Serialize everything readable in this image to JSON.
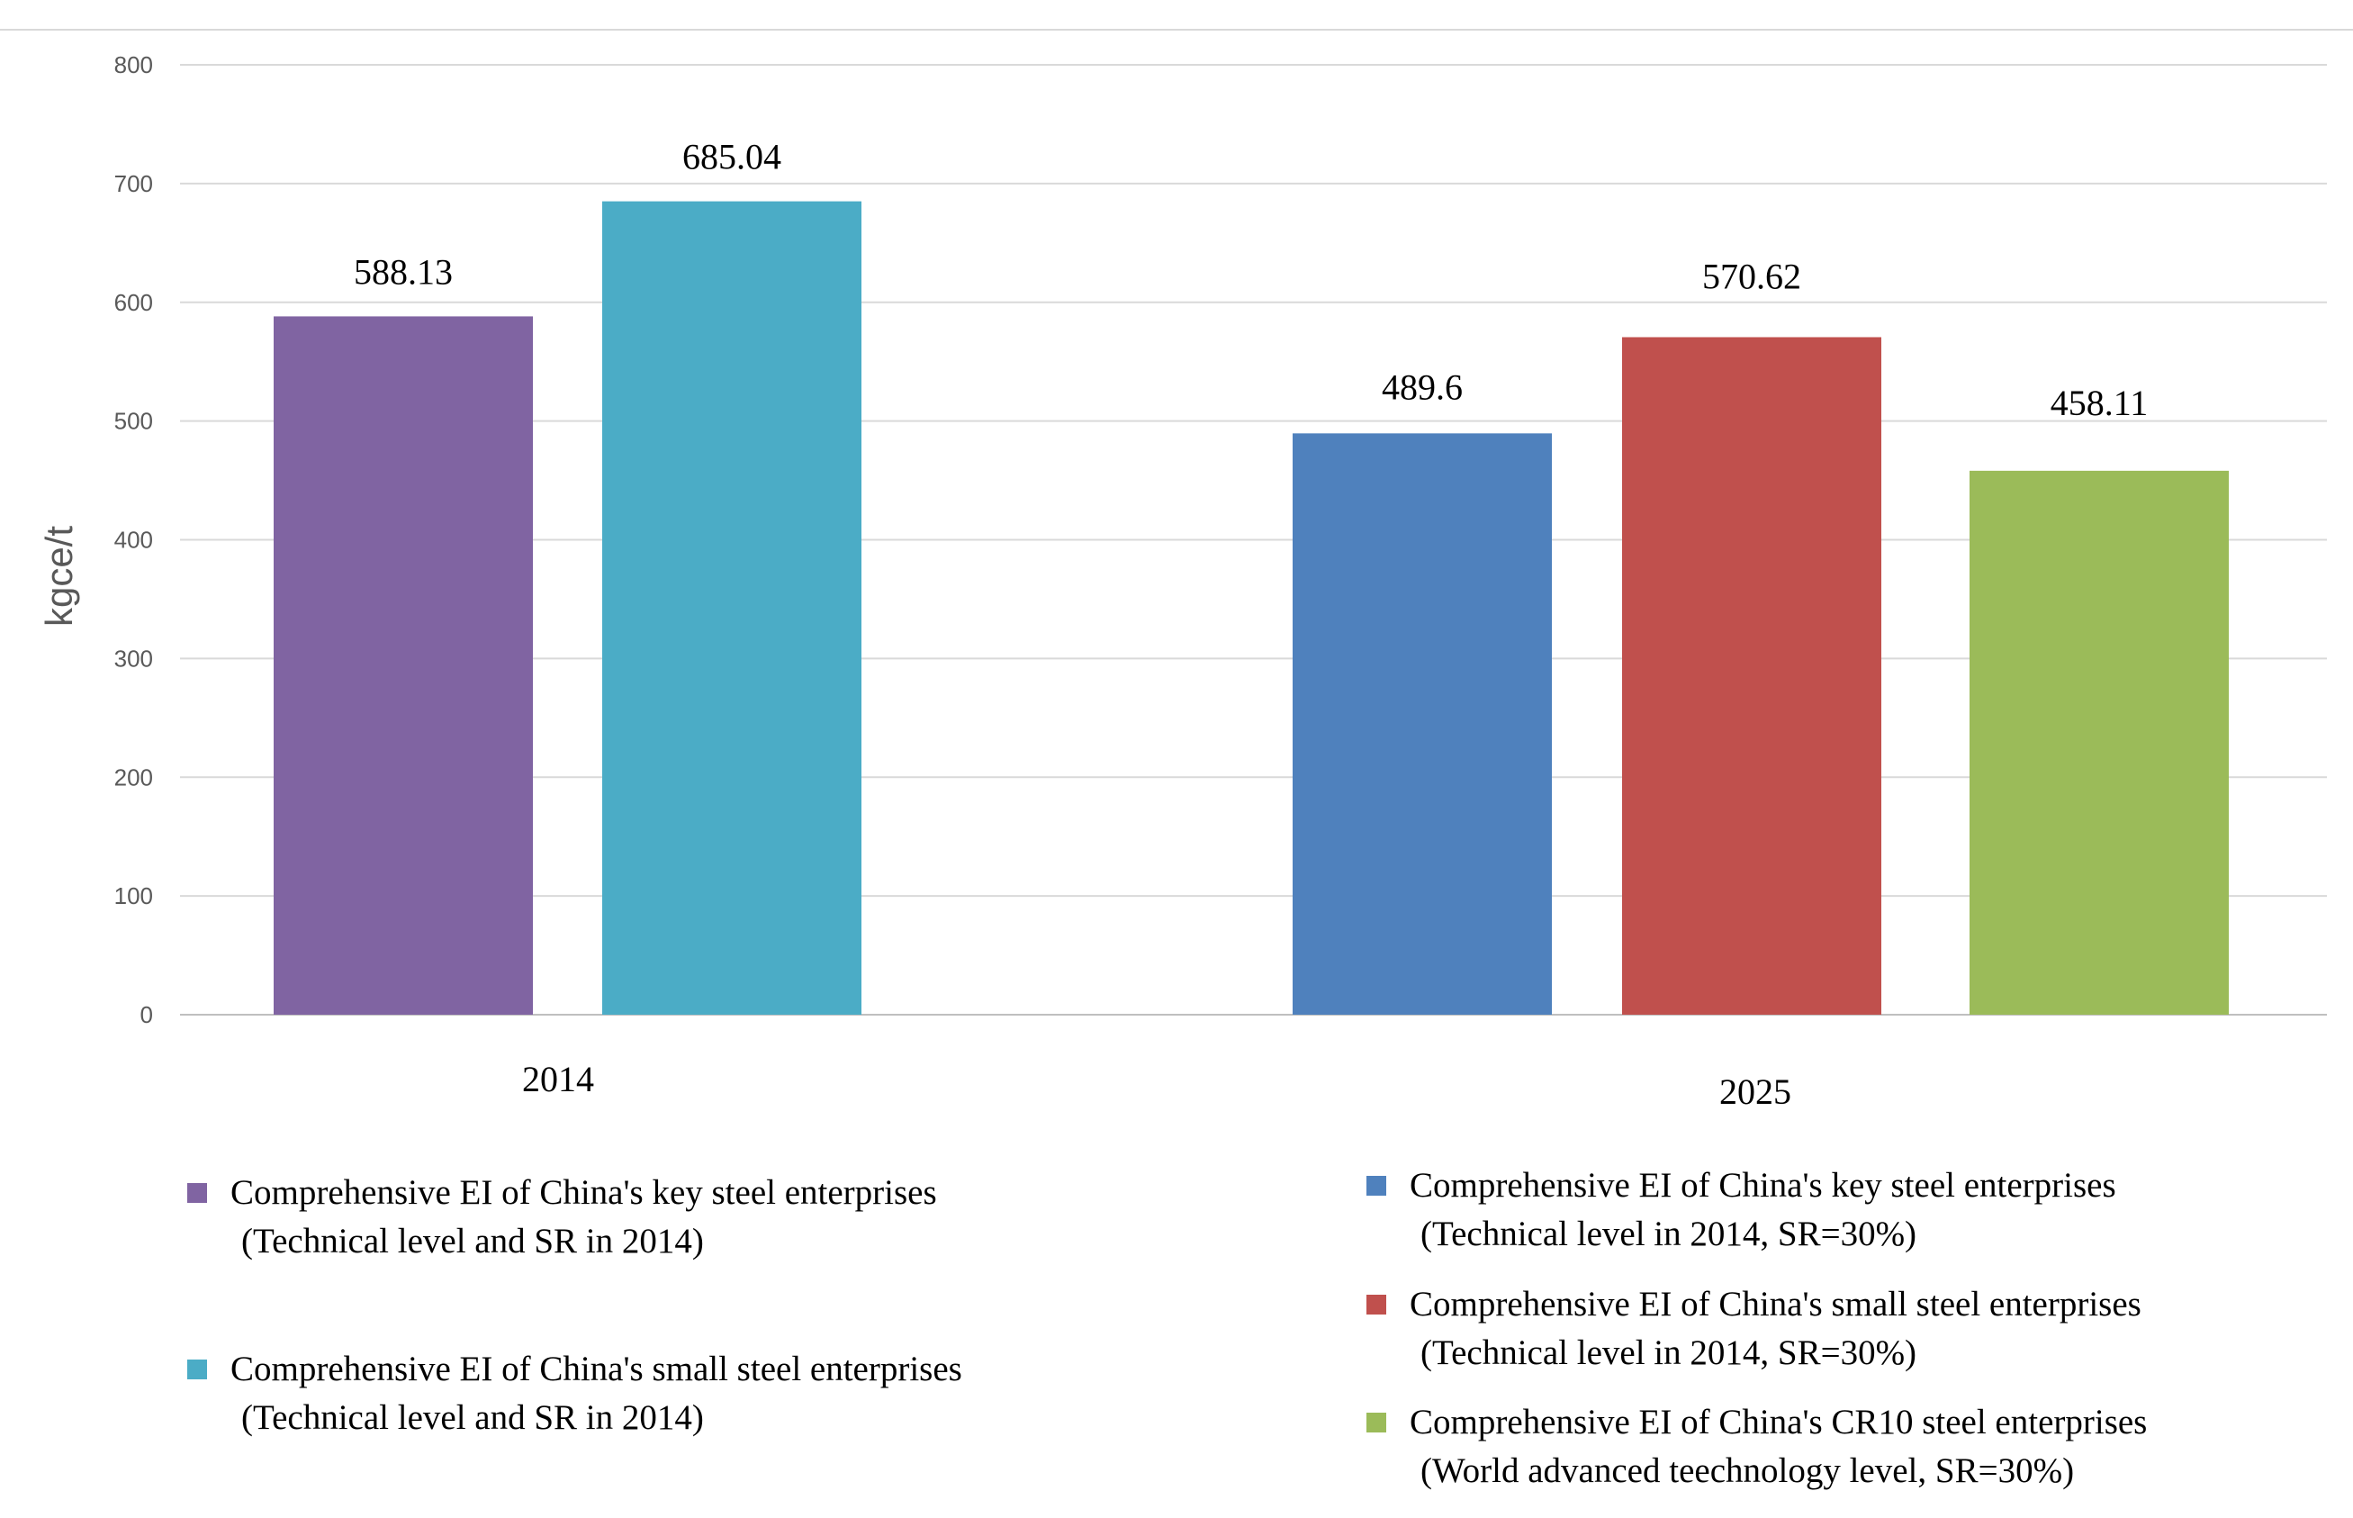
{
  "chart_data": {
    "type": "bar",
    "title": "",
    "xlabel": "",
    "ylabel": "kgce/t",
    "ylim": [
      0,
      800
    ],
    "yticks": [
      0,
      100,
      200,
      300,
      400,
      500,
      600,
      700,
      800
    ],
    "grid": true,
    "groups": [
      {
        "category": "2014",
        "bars": [
          {
            "series": "key_2014",
            "value": 588.13,
            "label": "588.13",
            "color": "#8064A2"
          },
          {
            "series": "small_2014",
            "value": 685.04,
            "label": "685.04",
            "color": "#4BACC6"
          }
        ]
      },
      {
        "category": "2025",
        "bars": [
          {
            "series": "key_2025",
            "value": 489.6,
            "label": "489.6",
            "color": "#4F81BD"
          },
          {
            "series": "small_2025",
            "value": 570.62,
            "label": "570.62",
            "color": "#C0504D"
          },
          {
            "series": "cr10_2025",
            "value": 458.11,
            "label": "458.11",
            "color": "#9BBB59"
          }
        ]
      }
    ],
    "legend": [
      {
        "id": "key_2014",
        "color": "#8064A2",
        "line1": "Comprehensive EI of China's key steel enterprises",
        "line2": "(Technical level and SR in 2014)"
      },
      {
        "id": "small_2014",
        "color": "#4BACC6",
        "line1": "Comprehensive EI of China's small steel enterprises",
        "line2": "(Technical level and SR in 2014)"
      },
      {
        "id": "key_2025",
        "color": "#4F81BD",
        "line1": "Comprehensive EI of China's key steel enterprises",
        "line2": "(Technical level in 2014,  SR=30%)"
      },
      {
        "id": "small_2025",
        "color": "#C0504D",
        "line1": "Comprehensive EI of China's small steel enterprises",
        "line2": "(Technical level in 2014,  SR=30%)"
      },
      {
        "id": "cr10_2025",
        "color": "#9BBB59",
        "line1": "Comprehensive EI of China's CR10 steel enterprises",
        "line2": "(World advanced teechnology level,  SR=30%)"
      }
    ]
  }
}
